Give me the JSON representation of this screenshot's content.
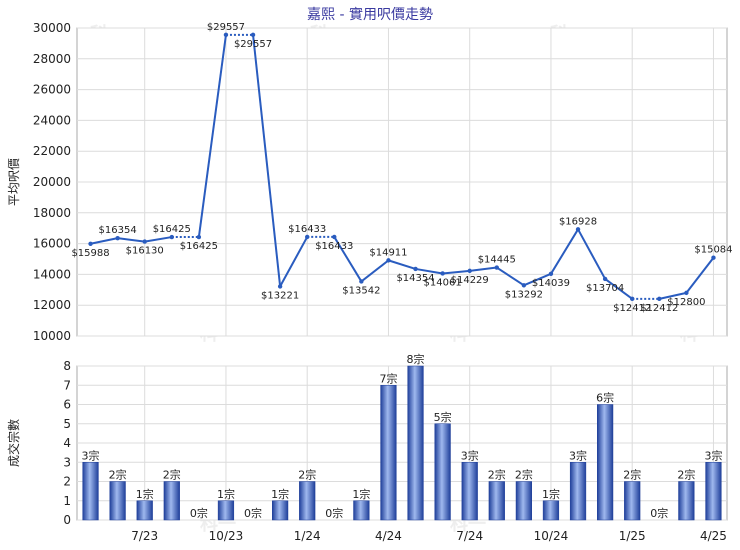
{
  "title": "嘉熙 - 實用呎價走勢",
  "watermark": "科一",
  "chart_data": [
    {
      "type": "line",
      "ylabel": "平均呎價",
      "ylim": [
        10000,
        30000
      ],
      "yticks": [
        10000,
        12000,
        14000,
        16000,
        18000,
        20000,
        22000,
        24000,
        26000,
        28000,
        30000
      ],
      "color": "#2a5cbf",
      "points": [
        {
          "i": 0,
          "v": 15988,
          "label": "$15988"
        },
        {
          "i": 1,
          "v": 16354,
          "label": "$16354"
        },
        {
          "i": 2,
          "v": 16130,
          "label": "$16130"
        },
        {
          "i": 3,
          "v": 16425,
          "label": "$16425"
        },
        {
          "i": 5,
          "v": 29557,
          "label": "$29557"
        },
        {
          "i": 7,
          "v": 13221,
          "label": "$13221"
        },
        {
          "i": 8,
          "v": 16433,
          "label": "$16433"
        },
        {
          "i": 10,
          "v": 13542,
          "label": "$13542"
        },
        {
          "i": 11,
          "v": 14911,
          "label": "$14911"
        },
        {
          "i": 12,
          "v": 14354,
          "label": "$14354"
        },
        {
          "i": 13,
          "v": 14061,
          "label": "$14061"
        },
        {
          "i": 14,
          "v": 14229,
          "label": "$14229"
        },
        {
          "i": 15,
          "v": 14445,
          "label": "$14445"
        },
        {
          "i": 16,
          "v": 13292,
          "label": "$13292"
        },
        {
          "i": 17,
          "v": 14039,
          "label": "$14039"
        },
        {
          "i": 18,
          "v": 16928,
          "label": "$16928"
        },
        {
          "i": 19,
          "v": 13704,
          "label": "$13704"
        },
        {
          "i": 20,
          "v": 12412,
          "label": "$12412"
        },
        {
          "i": 22,
          "v": 12800,
          "label": "$12800"
        },
        {
          "i": 23,
          "v": 15084,
          "label": "$15084"
        }
      ],
      "carried": [
        {
          "i": 4,
          "v": 16425,
          "label": "$16425"
        },
        {
          "i": 6,
          "v": 29557,
          "label": "$29557"
        },
        {
          "i": 9,
          "v": 16433,
          "label": "$16433"
        },
        {
          "i": 21,
          "v": 12412,
          "label": "$12412"
        }
      ]
    },
    {
      "type": "bar",
      "ylabel": "成交宗數",
      "ylim": [
        0,
        8
      ],
      "yticks": [
        0,
        1,
        2,
        3,
        4,
        5,
        6,
        7,
        8
      ],
      "values": [
        3,
        2,
        1,
        2,
        0,
        1,
        0,
        1,
        2,
        0,
        1,
        7,
        8,
        5,
        3,
        2,
        2,
        1,
        3,
        6,
        2,
        0,
        2,
        3
      ],
      "value_labels": [
        "3宗",
        "2宗",
        "1宗",
        "2宗",
        "0宗",
        "1宗",
        "0宗",
        "1宗",
        "2宗",
        "0宗",
        "1宗",
        "7宗",
        "8宗",
        "5宗",
        "3宗",
        "2宗",
        "2宗",
        "1宗",
        "3宗",
        "6宗",
        "2宗",
        "0宗",
        "2宗",
        "3宗"
      ],
      "x_tick_labels": [
        {
          "i": 2,
          "label": "7/23"
        },
        {
          "i": 5,
          "label": "10/23"
        },
        {
          "i": 8,
          "label": "1/24"
        },
        {
          "i": 11,
          "label": "4/24"
        },
        {
          "i": 14,
          "label": "7/24"
        },
        {
          "i": 17,
          "label": "10/24"
        },
        {
          "i": 20,
          "label": "1/25"
        },
        {
          "i": 23,
          "label": "4/25"
        }
      ]
    }
  ]
}
